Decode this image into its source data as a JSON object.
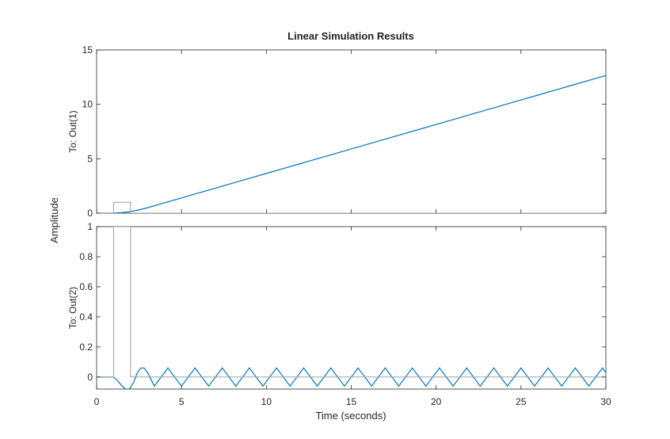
{
  "chart_data": {
    "type": "line",
    "title": "Linear Simulation Results",
    "xlabel": "Time (seconds)",
    "ylabel": "Amplitude",
    "xlim": [
      0,
      30
    ],
    "xticks": [
      0,
      5,
      10,
      15,
      20,
      25,
      30
    ],
    "grid": false,
    "colors": {
      "response": "#0072BD",
      "input": "#A0A0A0",
      "axes": "#262626"
    },
    "panels": [
      {
        "label": "To: Out(1)",
        "ylim": [
          0,
          15
        ],
        "yticks": [
          0,
          5,
          10,
          15
        ],
        "series": [
          {
            "role": "response",
            "x": [
              0,
              1,
              1.5,
              2,
              2.5,
              3,
              4,
              5,
              6,
              7,
              8,
              9,
              10,
              11,
              12,
              13,
              14,
              15,
              16,
              17,
              18,
              19,
              20,
              21,
              22,
              23,
              24,
              25,
              26,
              27,
              28,
              29,
              30
            ],
            "y": [
              0,
              0,
              0.05,
              0.15,
              0.3,
              0.5,
              0.95,
              1.4,
              1.85,
              2.3,
              2.75,
              3.2,
              3.65,
              4.1,
              4.55,
              5.0,
              5.45,
              5.9,
              6.35,
              6.8,
              7.25,
              7.7,
              8.15,
              8.6,
              9.05,
              9.5,
              9.95,
              10.4,
              10.85,
              11.3,
              11.75,
              12.2,
              12.65
            ]
          },
          {
            "role": "input",
            "x": [
              0,
              1,
              1,
              2,
              2,
              30
            ],
            "y": [
              0,
              0,
              1,
              1,
              0,
              0
            ]
          }
        ]
      },
      {
        "label": "To: Out(2)",
        "ylim": [
          -0.08,
          1
        ],
        "yticks": [
          0,
          0.2,
          0.4,
          0.6,
          0.8,
          1
        ],
        "series": [
          {
            "role": "response",
            "x": [
              0,
              1,
              1.2,
              1.5,
              1.8,
              2.0,
              2.2,
              2.4,
              2.6,
              2.8,
              3.0,
              3.4,
              3.8,
              4.2,
              4.6,
              5.0,
              5.4,
              5.8,
              6.2,
              6.6,
              7.0,
              7.4,
              7.8,
              8.2,
              8.6,
              9.0,
              9.4,
              9.8,
              10.2,
              10.6,
              11.0,
              11.4,
              11.8,
              12.2,
              12.6,
              13.0,
              13.4,
              13.8,
              14.2,
              14.6,
              15.0,
              15.4,
              15.8,
              16.2,
              16.6,
              17.0,
              17.4,
              17.8,
              18.2,
              18.6,
              19.0,
              19.4,
              19.8,
              20.2,
              20.6,
              21.0,
              21.4,
              21.8,
              22.2,
              22.6,
              23.0,
              23.4,
              23.8,
              24.2,
              24.6,
              25.0,
              25.4,
              25.8,
              26.2,
              26.6,
              27.0,
              27.4,
              27.8,
              28.2,
              28.6,
              29.0,
              29.4,
              29.8,
              30.0
            ],
            "y": [
              0,
              0,
              -0.02,
              -0.06,
              -0.09,
              -0.07,
              -0.03,
              0.03,
              0.06,
              0.06,
              0.03,
              -0.06,
              0.0,
              0.06,
              0.0,
              -0.06,
              0.0,
              0.06,
              0.0,
              -0.06,
              0.0,
              0.06,
              0.0,
              -0.06,
              0.0,
              0.06,
              0.0,
              -0.06,
              0.0,
              0.06,
              0.0,
              -0.06,
              0.0,
              0.06,
              0.0,
              -0.06,
              0.0,
              0.06,
              0.0,
              -0.06,
              0.0,
              0.06,
              0.0,
              -0.06,
              0.0,
              0.06,
              0.0,
              -0.06,
              0.0,
              0.06,
              0.0,
              -0.06,
              0.0,
              0.06,
              0.0,
              -0.06,
              0.0,
              0.06,
              0.0,
              -0.06,
              0.0,
              0.06,
              0.0,
              -0.06,
              0.0,
              0.06,
              0.0,
              -0.06,
              0.0,
              0.06,
              0.0,
              -0.06,
              0.0,
              0.06,
              0.0,
              -0.06,
              0.0,
              0.06,
              0.03
            ]
          },
          {
            "role": "input",
            "x": [
              0,
              1,
              1,
              2,
              2,
              30
            ],
            "y": [
              0,
              0,
              1,
              1,
              0,
              0
            ]
          }
        ]
      }
    ]
  }
}
